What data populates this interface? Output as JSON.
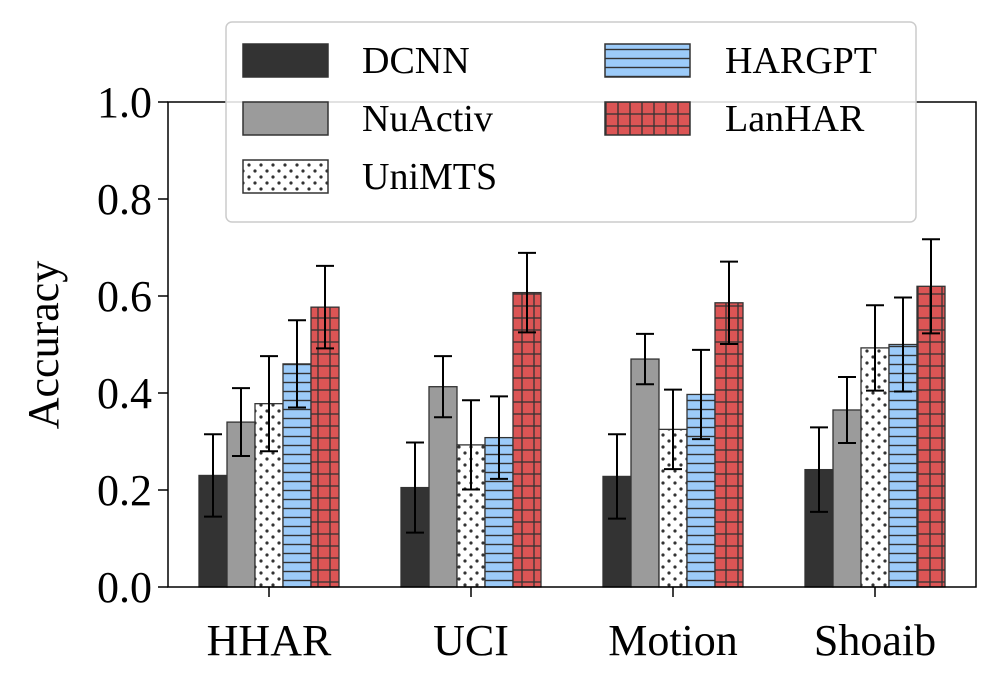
{
  "chart_data": {
    "type": "bar",
    "title": "",
    "xlabel": "",
    "ylabel": "Accuracy",
    "ylim": [
      0,
      1.0
    ],
    "yticks": [
      "0.0",
      "0.2",
      "0.4",
      "0.6",
      "0.8",
      "1.0"
    ],
    "categories": [
      "HHAR",
      "UCI",
      "Motion",
      "Shoaib"
    ],
    "legend_position": "top",
    "series": [
      {
        "name": "DCNN",
        "color": "#333333",
        "pattern": "solid",
        "values": [
          0.23,
          0.205,
          0.228,
          0.242
        ],
        "errors": [
          0.085,
          0.093,
          0.087,
          0.087
        ]
      },
      {
        "name": "NuActiv",
        "color": "#9b9b9b",
        "pattern": "solid",
        "values": [
          0.34,
          0.413,
          0.47,
          0.365
        ],
        "errors": [
          0.07,
          0.063,
          0.052,
          0.068
        ]
      },
      {
        "name": "UniMTS",
        "color": "#ffffff",
        "pattern": "dots",
        "values": [
          0.378,
          0.293,
          0.325,
          0.493
        ],
        "errors": [
          0.098,
          0.092,
          0.082,
          0.088
        ]
      },
      {
        "name": "HARGPT",
        "color": "#9ccbf9",
        "pattern": "hlines",
        "values": [
          0.46,
          0.308,
          0.397,
          0.5
        ],
        "errors": [
          0.09,
          0.085,
          0.092,
          0.097
        ]
      },
      {
        "name": "LanHAR",
        "color": "#dc5555",
        "pattern": "grid",
        "values": [
          0.577,
          0.607,
          0.586,
          0.62
        ],
        "errors": [
          0.085,
          0.082,
          0.085,
          0.097
        ]
      }
    ]
  }
}
